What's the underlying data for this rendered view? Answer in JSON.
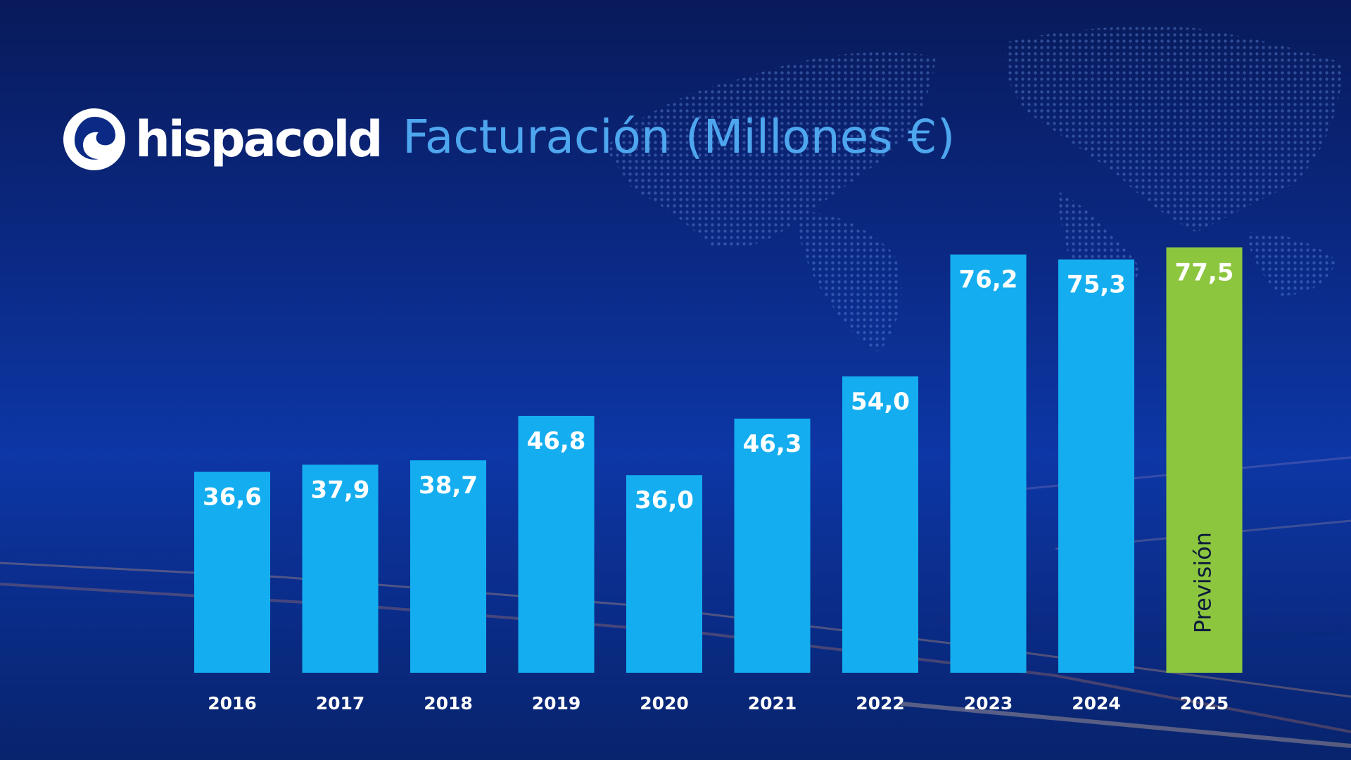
{
  "logo": {
    "name": "hispacold",
    "icon": "hispacold-wave-logo-icon"
  },
  "colors": {
    "bar": "#14aef0",
    "forecast_bar": "#8cc63f",
    "title": "#4ea6ee"
  },
  "chart_data": {
    "type": "bar",
    "title": "Facturación (Millones €)",
    "xlabel": "",
    "ylabel": "",
    "categories": [
      "2016",
      "2017",
      "2018",
      "2019",
      "2020",
      "2021",
      "2022",
      "2023",
      "2024",
      "2025"
    ],
    "values": [
      36.6,
      37.9,
      38.7,
      46.8,
      36.0,
      46.3,
      54.0,
      76.2,
      75.3,
      77.5
    ],
    "value_labels": [
      "36,6",
      "37,9",
      "38,7",
      "46,8",
      "36,0",
      "46,3",
      "54,0",
      "76,2",
      "75,3",
      "77,5"
    ],
    "forecast_index": 9,
    "forecast_label": "Previsión",
    "grid": false,
    "legend": "none"
  }
}
